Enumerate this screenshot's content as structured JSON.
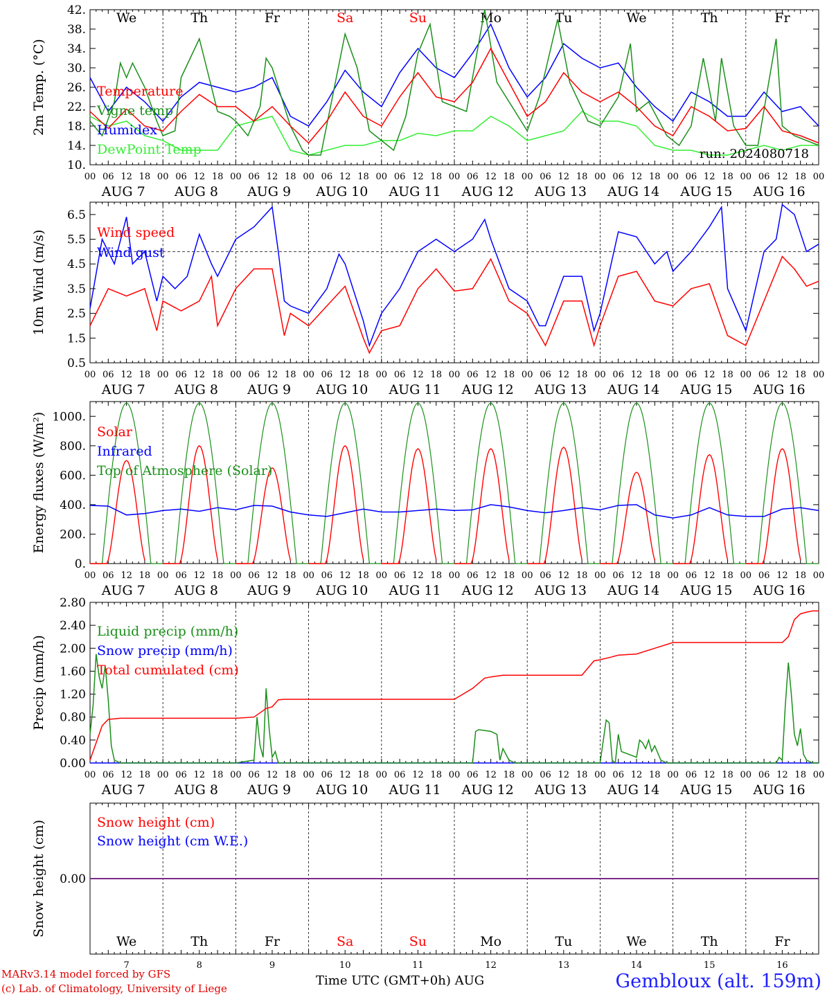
{
  "chart_data": [
    {
      "type": "line",
      "ylabel": "2m Temp. (°C)",
      "ylim": [
        10,
        42
      ],
      "yticks": [
        "10.",
        "14.",
        "18.",
        "22.",
        "26.",
        "30.",
        "34.",
        "38.",
        "42."
      ],
      "legend_placement": "left",
      "annotation": "run: 2024080718",
      "weekdays": [
        "We",
        "Th",
        "Fr",
        "Sa",
        "Su",
        "Mo",
        "Tu",
        "We",
        "Th",
        "Fr"
      ],
      "series": [
        {
          "name": "Temperature",
          "color": "#ff0000",
          "x_hours": [
            0,
            6,
            12,
            18,
            24,
            30,
            36,
            42,
            48,
            54,
            60,
            66,
            72,
            78,
            84,
            90,
            96,
            102,
            108,
            114,
            120,
            126,
            132,
            138,
            144,
            150,
            156,
            162,
            168,
            174,
            180,
            186,
            192,
            198,
            204,
            210,
            216,
            222,
            228,
            234,
            240
          ],
          "values": [
            21,
            17.5,
            21.5,
            18,
            17,
            21,
            24.5,
            22,
            22,
            19,
            22,
            18,
            14.5,
            19,
            25,
            20,
            18,
            24,
            29,
            24,
            23,
            27,
            34,
            27,
            20,
            23,
            29,
            25,
            23,
            25,
            22,
            18,
            16,
            22,
            20,
            17,
            17.5,
            22,
            17,
            16,
            14.5
          ]
        },
        {
          "name": "Vigne temp",
          "color": "#1a8f1a",
          "x_hours": [
            0,
            4,
            8,
            10,
            12,
            14,
            18,
            22,
            24,
            28,
            30,
            36,
            38,
            42,
            46,
            48,
            52,
            56,
            58,
            60,
            64,
            66,
            70,
            72,
            76,
            84,
            88,
            92,
            96,
            100,
            104,
            108,
            112,
            116,
            120,
            124,
            130,
            134,
            140,
            144,
            148,
            154,
            158,
            164,
            168,
            174,
            178,
            180,
            184,
            190,
            194,
            198,
            202,
            206,
            208,
            212,
            216,
            220,
            226,
            228,
            232,
            240
          ],
          "values": [
            19,
            16,
            23,
            31,
            28,
            31,
            26,
            19,
            16,
            17,
            28,
            36,
            31,
            21,
            20,
            19,
            16,
            22,
            32,
            30,
            22,
            18,
            13,
            12,
            12,
            37,
            30,
            17,
            15,
            13,
            20,
            33,
            39,
            23,
            22,
            21,
            42,
            27,
            21,
            17,
            24,
            40,
            27,
            19,
            18,
            24,
            35,
            21,
            23,
            16,
            14,
            18,
            32,
            19,
            32,
            18,
            14,
            14,
            36,
            18,
            16,
            14
          ]
        },
        {
          "name": "Humidex",
          "color": "#0000ff",
          "x_hours": [
            0,
            6,
            12,
            18,
            24,
            30,
            36,
            42,
            48,
            54,
            60,
            66,
            72,
            78,
            84,
            90,
            96,
            102,
            108,
            114,
            120,
            126,
            132,
            138,
            144,
            150,
            156,
            162,
            168,
            174,
            180,
            186,
            192,
            198,
            204,
            210,
            216,
            222,
            228,
            234,
            240
          ],
          "values": [
            28,
            21,
            26,
            23,
            19,
            24,
            27,
            26,
            25,
            26,
            28,
            20,
            18,
            23,
            29.5,
            25,
            22,
            29,
            34,
            30,
            28,
            33,
            39,
            30,
            24,
            28,
            35,
            32,
            30,
            31,
            26,
            22,
            19,
            25,
            23,
            20,
            20,
            25,
            21,
            22,
            18
          ]
        },
        {
          "name": "DewPoint Temp",
          "color": "#33ee33",
          "x_hours": [
            0,
            6,
            12,
            18,
            24,
            30,
            36,
            42,
            48,
            54,
            60,
            66,
            72,
            78,
            84,
            90,
            96,
            102,
            108,
            114,
            120,
            126,
            132,
            138,
            144,
            150,
            156,
            162,
            168,
            174,
            180,
            186,
            192,
            198,
            204,
            210,
            216,
            222,
            228,
            234,
            240
          ],
          "values": [
            20,
            18,
            19,
            16,
            15,
            13,
            13,
            13,
            18,
            19,
            20,
            13,
            12,
            13,
            14,
            14,
            15,
            15,
            16.5,
            16,
            17,
            17,
            20,
            18,
            15,
            16,
            17,
            21,
            19,
            19,
            18,
            14,
            13,
            13,
            12,
            12,
            13,
            14,
            13,
            14,
            14
          ]
        }
      ]
    },
    {
      "type": "line",
      "ylabel": "10m Wind (m/s)",
      "ylim": [
        0.5,
        7
      ],
      "yticks": [
        "0.5",
        "1.5",
        "2.5",
        "3.5",
        "4.5",
        "5.5",
        "6.5"
      ],
      "threshold": 5,
      "series": [
        {
          "name": "Wind speed",
          "color": "#ff0000",
          "x_hours": [
            0,
            6,
            12,
            18,
            22,
            24,
            30,
            36,
            40,
            42,
            48,
            54,
            60,
            64,
            66,
            72,
            78,
            84,
            90,
            92,
            96,
            102,
            108,
            114,
            120,
            126,
            132,
            138,
            144,
            150,
            156,
            162,
            166,
            168,
            174,
            180,
            186,
            192,
            198,
            204,
            210,
            216,
            222,
            228,
            232,
            236,
            240
          ],
          "values": [
            2,
            3.5,
            3.2,
            3.5,
            1.8,
            3,
            2.6,
            3,
            4,
            2,
            3.5,
            4.3,
            4.3,
            1.6,
            2.5,
            2,
            2.8,
            3.6,
            1.5,
            0.9,
            1.8,
            2,
            3.5,
            4.3,
            3.4,
            3.5,
            4.7,
            3,
            2.5,
            1.2,
            3,
            3,
            1.2,
            2,
            4,
            4.2,
            3,
            2.8,
            3.5,
            3.7,
            1.6,
            1.2,
            3,
            4.8,
            4.3,
            3.6,
            3.8
          ]
        },
        {
          "name": "Wind gust",
          "color": "#0000ff",
          "x_hours": [
            0,
            4,
            8,
            12,
            14,
            18,
            22,
            24,
            28,
            32,
            36,
            40,
            42,
            48,
            54,
            60,
            62,
            64,
            66,
            72,
            78,
            82,
            84,
            90,
            92,
            96,
            102,
            108,
            114,
            120,
            126,
            130,
            132,
            138,
            144,
            148,
            150,
            156,
            162,
            166,
            168,
            174,
            180,
            186,
            190,
            192,
            198,
            204,
            208,
            210,
            216,
            222,
            226,
            228,
            232,
            236,
            240
          ],
          "values": [
            2.7,
            5.5,
            4.5,
            6.4,
            4.5,
            5,
            3,
            4,
            3.5,
            4,
            5.7,
            4.5,
            4,
            5.5,
            6,
            6.8,
            5,
            3,
            2.8,
            2.5,
            3.5,
            4.9,
            4.5,
            2.2,
            1.2,
            2.5,
            3.5,
            5,
            5.5,
            5,
            5.5,
            6.3,
            5.5,
            3.5,
            3,
            2,
            2,
            4,
            4,
            1.8,
            2.5,
            5.8,
            5.6,
            4.5,
            5,
            4.2,
            5,
            6,
            6.8,
            3.5,
            1.8,
            5,
            5.5,
            6.9,
            6.5,
            5,
            5.3
          ]
        }
      ]
    },
    {
      "type": "line",
      "ylabel": "Energy fluxes (W/m²)",
      "ylim": [
        0,
        1100
      ],
      "yticks": [
        "0.",
        "200.",
        "400.",
        "600.",
        "800.",
        "1000."
      ],
      "series": [
        {
          "name": "Solar",
          "color": "#ff0000",
          "peaks": [
            700,
            800,
            650,
            800,
            780,
            780,
            790,
            620,
            740,
            780
          ]
        },
        {
          "name": "Infrared",
          "color": "#0000ff",
          "x_hours": [
            0,
            6,
            12,
            18,
            24,
            30,
            36,
            42,
            48,
            54,
            60,
            66,
            72,
            78,
            84,
            90,
            96,
            102,
            108,
            114,
            120,
            126,
            132,
            138,
            144,
            150,
            156,
            162,
            168,
            174,
            180,
            186,
            192,
            198,
            204,
            210,
            216,
            222,
            228,
            234,
            240
          ],
          "values": [
            395,
            390,
            330,
            340,
            360,
            370,
            355,
            380,
            365,
            395,
            390,
            350,
            330,
            320,
            345,
            370,
            350,
            350,
            360,
            370,
            360,
            365,
            400,
            385,
            360,
            345,
            360,
            380,
            365,
            395,
            400,
            330,
            310,
            330,
            380,
            330,
            320,
            320,
            370,
            380,
            360
          ]
        },
        {
          "name": "Top of Atmosphere (Solar)",
          "color": "#1a8f1a",
          "peak": 1090
        }
      ]
    },
    {
      "type": "line",
      "ylabel": "Precip (mm/h)",
      "ylim": [
        0,
        2.8
      ],
      "yticks": [
        "0.00",
        "0.40",
        "0.80",
        "1.20",
        "1.60",
        "2.00",
        "2.40",
        "2.80"
      ],
      "series": [
        {
          "name": "Liquid precip (mm/h)",
          "color": "#1a8f1a",
          "x_hours": [
            0,
            1,
            2,
            3,
            4,
            5,
            6,
            7,
            8,
            10,
            24,
            48,
            54,
            55,
            56,
            57,
            58,
            59,
            60,
            61,
            62,
            64,
            66,
            68,
            72,
            96,
            120,
            126,
            127,
            128,
            132,
            134,
            135,
            136,
            138,
            140,
            144,
            168,
            170,
            171,
            172,
            173,
            174,
            175,
            180,
            181,
            182,
            183,
            184,
            185,
            186,
            188,
            190,
            192,
            216,
            226,
            227,
            228,
            229,
            230,
            231,
            232,
            233,
            234,
            235,
            236,
            238,
            240
          ],
          "values": [
            0.5,
            1.0,
            1.9,
            1.5,
            1.3,
            1.7,
            1.1,
            0.3,
            0.05,
            0,
            0,
            0,
            0.05,
            0.8,
            0.3,
            0.1,
            1.3,
            0.6,
            0.1,
            0.2,
            0,
            0,
            0,
            0,
            0,
            0,
            0,
            0,
            0.55,
            0.58,
            0.55,
            0.5,
            0.05,
            0.25,
            0.05,
            0,
            0,
            0,
            0.75,
            0.7,
            0.05,
            0,
            0.5,
            0.2,
            0.1,
            0.4,
            0.35,
            0.25,
            0.4,
            0.2,
            0.3,
            0.05,
            0,
            0,
            0,
            0,
            0.1,
            0.05,
            1.0,
            1.75,
            1.2,
            0.5,
            0.3,
            0.6,
            0.15,
            0.05,
            0,
            0
          ]
        },
        {
          "name": "Snow precip (mm/h)",
          "color": "#0000ff",
          "x_hours": [
            0,
            240
          ],
          "values": [
            0,
            0
          ]
        },
        {
          "name": "Total cumulated (cm)",
          "color": "#ff0000",
          "x_hours": [
            0,
            2,
            4,
            6,
            8,
            10,
            12,
            24,
            48,
            54,
            58,
            60,
            62,
            64,
            66,
            120,
            126,
            130,
            132,
            136,
            144,
            150,
            156,
            162,
            166,
            168,
            172,
            174,
            180,
            186,
            192,
            198,
            216,
            228,
            230,
            232,
            234,
            236,
            238,
            240
          ],
          "values": [
            0.05,
            0.35,
            0.65,
            0.76,
            0.77,
            0.78,
            0.78,
            0.78,
            0.78,
            0.8,
            0.95,
            0.98,
            1.1,
            1.11,
            1.11,
            1.11,
            1.3,
            1.48,
            1.5,
            1.53,
            1.53,
            1.53,
            1.53,
            1.53,
            1.78,
            1.8,
            1.85,
            1.88,
            1.9,
            2.0,
            2.1,
            2.1,
            2.1,
            2.1,
            2.2,
            2.5,
            2.6,
            2.63,
            2.65,
            2.65
          ]
        }
      ]
    },
    {
      "type": "line",
      "ylabel": "Snow height (cm)",
      "yticks": [
        "0.00"
      ],
      "series": [
        {
          "name": "Snow height (cm)",
          "color": "#ff0000",
          "x_hours": [
            0,
            240
          ],
          "values": [
            0,
            0
          ]
        },
        {
          "name": "Snow height (cm W.E.)",
          "color": "#0000ff",
          "x_hours": [
            0,
            240
          ],
          "values": [
            0,
            0
          ]
        }
      ]
    }
  ],
  "x_axis": {
    "hour_labels": [
      "00",
      "06",
      "12",
      "18"
    ],
    "end_label": "00",
    "day_labels": [
      "AUG  7",
      "AUG  8",
      "AUG  9",
      "AUG 10",
      "AUG 11",
      "AUG 12",
      "AUG 13",
      "AUG 14",
      "AUG 15",
      "AUG 16"
    ],
    "bottom_day_numbers": [
      "7",
      "8",
      "9",
      "10",
      "11",
      "12",
      "13",
      "14",
      "15",
      "16"
    ],
    "weekend_color": "#ff0000",
    "weekend_indices": [
      3,
      4
    ]
  },
  "footer": {
    "model": "MARv3.14 model forced by GFS",
    "lab": "(c) Lab. of Climatology, University of Liege",
    "time_label": "Time UTC (GMT+0h) AUG",
    "station": "Gembloux (alt. 159m)"
  }
}
